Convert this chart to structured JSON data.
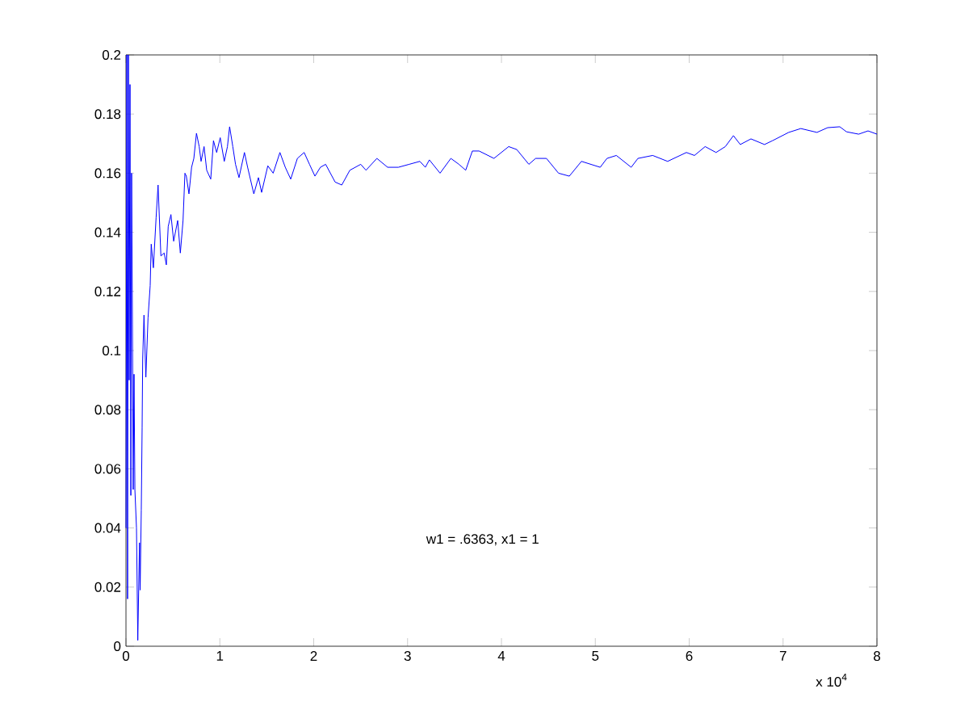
{
  "chart_data": {
    "type": "line",
    "xlabel": "x 10$^{4}$",
    "color": "#0000ff",
    "x": [
      0,
      0.009,
      0.017,
      0.026,
      0.034,
      0.043,
      0.052,
      0.06,
      0.069,
      0.077,
      0.086,
      0.095,
      0.112,
      0.126,
      0.144,
      0.151,
      0.163,
      0.172,
      0.178,
      0.192,
      0.212,
      0.235,
      0.258,
      0.269,
      0.292,
      0.321,
      0.342,
      0.372,
      0.407,
      0.43,
      0.45,
      0.479,
      0.508,
      0.551,
      0.579,
      0.608,
      0.628,
      0.643,
      0.671,
      0.699,
      0.723,
      0.751,
      0.78,
      0.8,
      0.832,
      0.86,
      0.903,
      0.932,
      0.966,
      1.004,
      1.047,
      1.081,
      1.104,
      1.138,
      1.167,
      1.204,
      1.262,
      1.296,
      1.362,
      1.411,
      1.445,
      1.511,
      1.568,
      1.64,
      1.697,
      1.755,
      1.826,
      1.898,
      1.955,
      2.013,
      2.071,
      2.127,
      2.228,
      2.299,
      2.385,
      2.501,
      2.557,
      2.673,
      2.787,
      2.902,
      3.017,
      3.131,
      3.189,
      3.232,
      3.346,
      3.461,
      3.547,
      3.619,
      3.69,
      3.762,
      3.92,
      4.077,
      4.163,
      4.292,
      4.364,
      4.479,
      4.608,
      4.723,
      4.852,
      5.052,
      5.124,
      5.224,
      5.382,
      5.454,
      5.611,
      5.77,
      5.97,
      6.056,
      6.17,
      6.286,
      6.385,
      6.471,
      6.544,
      6.658,
      6.802,
      6.888,
      7.06,
      7.189,
      7.361,
      7.475,
      7.604,
      7.676,
      7.805,
      7.905,
      8
    ],
    "values": [
      0.04,
      0.2,
      0.016,
      0.2,
      0.09,
      0.19,
      0.051,
      0.16,
      0.109,
      0.053,
      0.092,
      0.053,
      0.04,
      0.002,
      0.035,
      0.019,
      0.046,
      0.074,
      0.097,
      0.112,
      0.091,
      0.111,
      0.122,
      0.136,
      0.128,
      0.145,
      0.156,
      0.132,
      0.133,
      0.129,
      0.142,
      0.146,
      0.137,
      0.144,
      0.133,
      0.144,
      0.16,
      0.159,
      0.153,
      0.162,
      0.165,
      0.1735,
      0.169,
      0.164,
      0.169,
      0.161,
      0.158,
      0.171,
      0.167,
      0.172,
      0.164,
      0.169,
      0.1757,
      0.169,
      0.163,
      0.1585,
      0.167,
      0.162,
      0.153,
      0.1585,
      0.1535,
      0.1625,
      0.16,
      0.167,
      0.162,
      0.158,
      0.165,
      0.167,
      0.163,
      0.159,
      0.162,
      0.163,
      0.157,
      0.156,
      0.161,
      0.163,
      0.161,
      0.165,
      0.162,
      0.162,
      0.163,
      0.164,
      0.162,
      0.1645,
      0.16,
      0.165,
      0.163,
      0.161,
      0.1675,
      0.1675,
      0.165,
      0.169,
      0.168,
      0.163,
      0.165,
      0.165,
      0.16,
      0.159,
      0.164,
      0.162,
      0.165,
      0.166,
      0.162,
      0.165,
      0.166,
      0.164,
      0.167,
      0.166,
      0.169,
      0.167,
      0.169,
      0.1727,
      0.1697,
      0.1716,
      0.1697,
      0.171,
      0.1738,
      0.1751,
      0.1738,
      0.1754,
      0.1757,
      0.174,
      0.1732,
      0.1743,
      0.1732
    ],
    "xlim": [
      0,
      8
    ],
    "ylim": [
      0,
      0.2
    ],
    "xticks": [
      0,
      1,
      2,
      3,
      4,
      5,
      6,
      7,
      8
    ],
    "yticks": [
      0,
      0.02,
      0.04,
      0.06,
      0.08,
      0.1,
      0.12,
      0.14,
      0.16,
      0.18,
      0.2
    ],
    "annotations": [
      "w1 = .6363,  x1 = 1"
    ]
  }
}
